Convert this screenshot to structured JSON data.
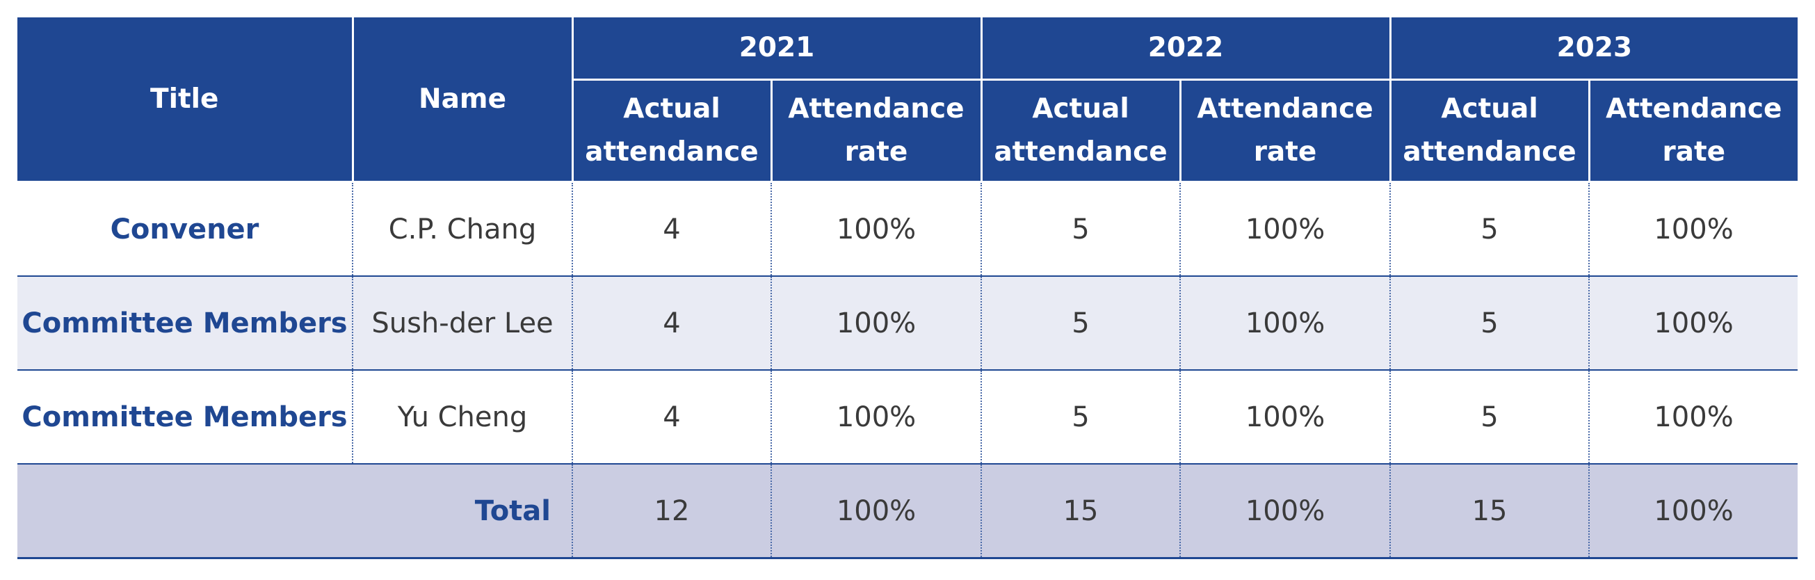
{
  "table": {
    "headers": {
      "title": "Title",
      "name": "Name",
      "years": [
        "2021",
        "2022",
        "2023"
      ],
      "actual": "Actual attendance",
      "rate": "Attendance rate"
    },
    "rows": [
      {
        "title": "Convener",
        "name": "C.P. Chang",
        "v": [
          "4",
          "100%",
          "5",
          "100%",
          "5",
          "100%"
        ]
      },
      {
        "title": "Committee Members",
        "name": "Sush-der Lee",
        "v": [
          "4",
          "100%",
          "5",
          "100%",
          "5",
          "100%"
        ]
      },
      {
        "title": "Committee Members",
        "name": "Yu Cheng",
        "v": [
          "4",
          "100%",
          "5",
          "100%",
          "5",
          "100%"
        ]
      }
    ],
    "total": {
      "label": "Total",
      "v": [
        "12",
        "100%",
        "15",
        "100%",
        "15",
        "100%"
      ]
    }
  }
}
